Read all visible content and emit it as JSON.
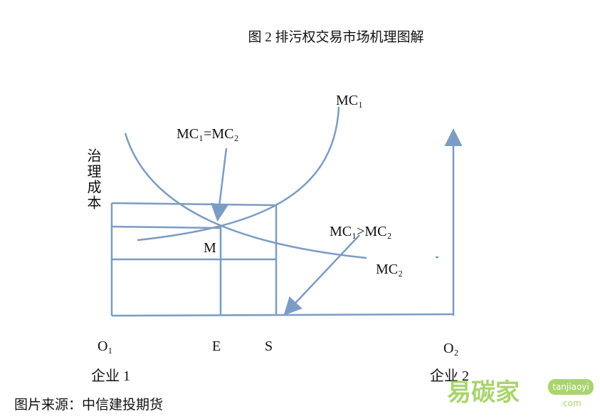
{
  "title": "图 2  排污权交易市场机理图解",
  "labels": {
    "mc1": "MC₁",
    "mc1_eq_mc2": "MC₁=MC₂",
    "mc1_gt_mc2": "MC₁>MC₂",
    "mc2": "MC₂",
    "m": "M",
    "y_axis": "治理成本",
    "o1": "O₁",
    "e": "E",
    "s": "S",
    "o2": "O₂",
    "firm1": "企业 1",
    "firm2": "企业 2"
  },
  "source": "图片来源：中信建投期货",
  "watermark": {
    "brand": "易碳家",
    "site": "tanjiaoyi",
    "domain": ".com"
  }
}
